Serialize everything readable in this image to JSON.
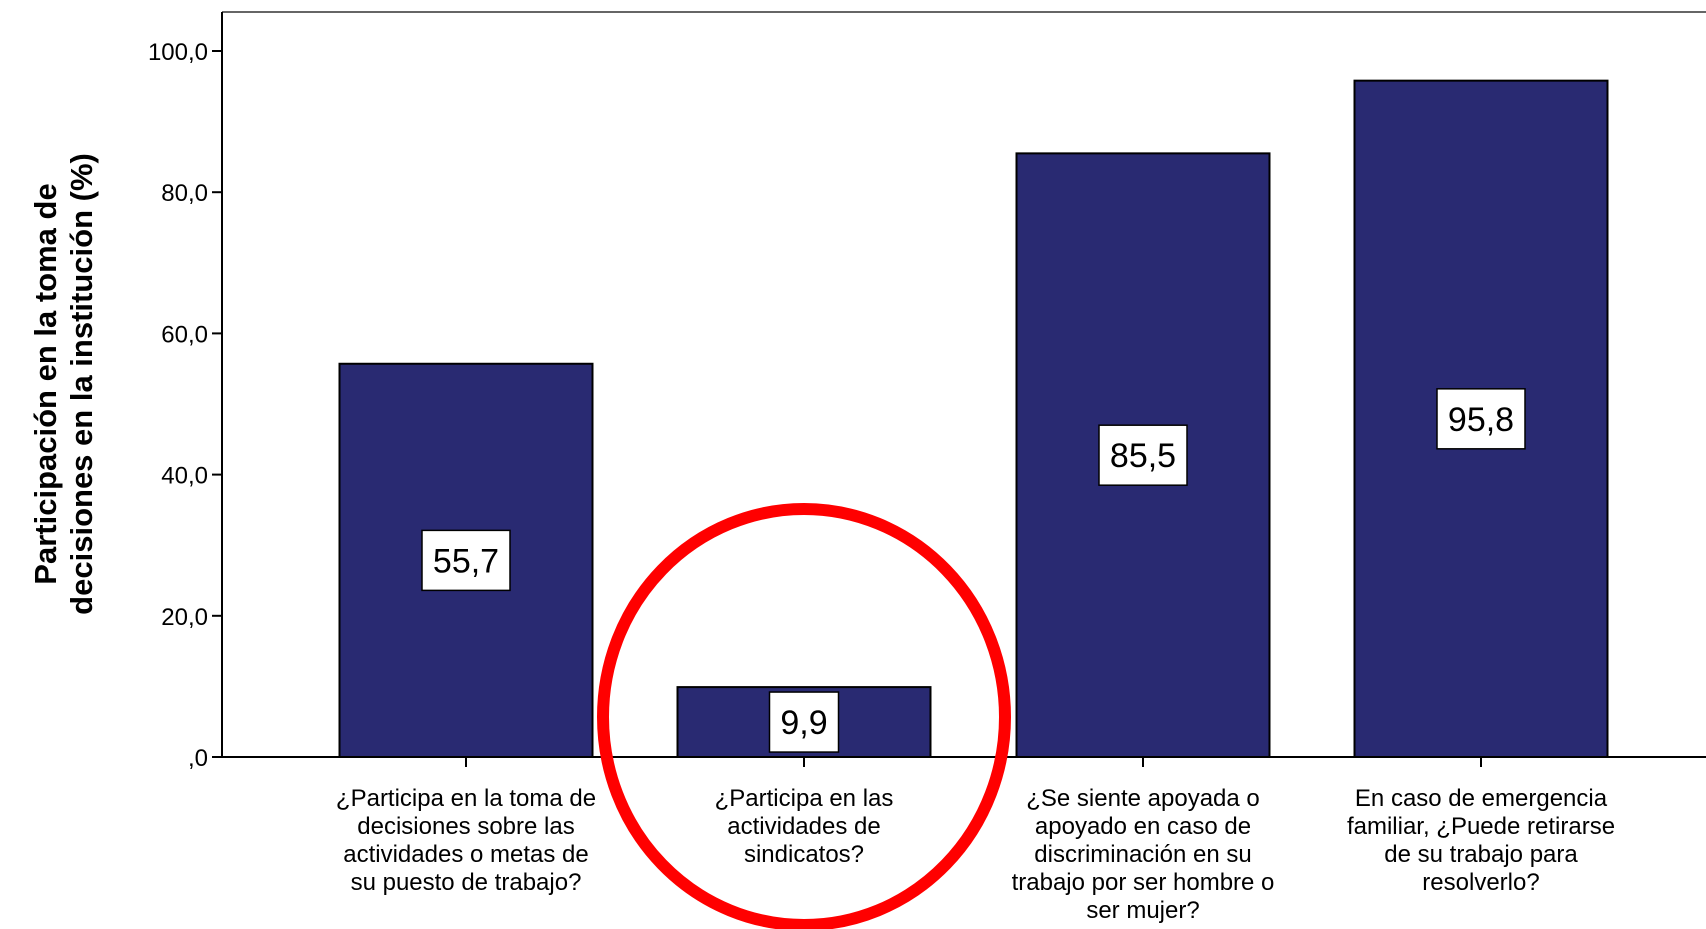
{
  "chart_data": {
    "type": "bar",
    "ylabel_lines": [
      "Participación en la toma de",
      "decisiones en la institución (%)"
    ],
    "xlabel": "",
    "ylim": [
      0,
      100
    ],
    "yticks": [
      {
        "value": 0,
        "label": ",0"
      },
      {
        "value": 20,
        "label": "20,0"
      },
      {
        "value": 40,
        "label": "40,0"
      },
      {
        "value": 60,
        "label": "60,0"
      },
      {
        "value": 80,
        "label": "80,0"
      },
      {
        "value": 100,
        "label": "100,0"
      }
    ],
    "categories": [
      [
        "¿Participa en la toma de",
        "decisiones sobre las",
        "actividades o metas de",
        "su puesto de trabajo?"
      ],
      [
        "¿Participa en las",
        "actividades de",
        "sindicatos?"
      ],
      [
        "¿Se siente apoyada o",
        "apoyado en caso de",
        "discriminación en su",
        "trabajo por ser hombre o",
        "ser mujer?"
      ],
      [
        "En caso de emergencia",
        "familiar, ¿Puede retirarse",
        "de su trabajo para",
        "resolverlo?"
      ]
    ],
    "values": [
      55.7,
      9.9,
      85.5,
      95.8
    ],
    "data_labels": [
      "55,7",
      "9,9",
      "85,5",
      "95,8"
    ],
    "grid": false,
    "bar_color": "#292a72",
    "highlight": {
      "category_index": 1,
      "shape": "circle",
      "color": "#ff0000"
    }
  }
}
